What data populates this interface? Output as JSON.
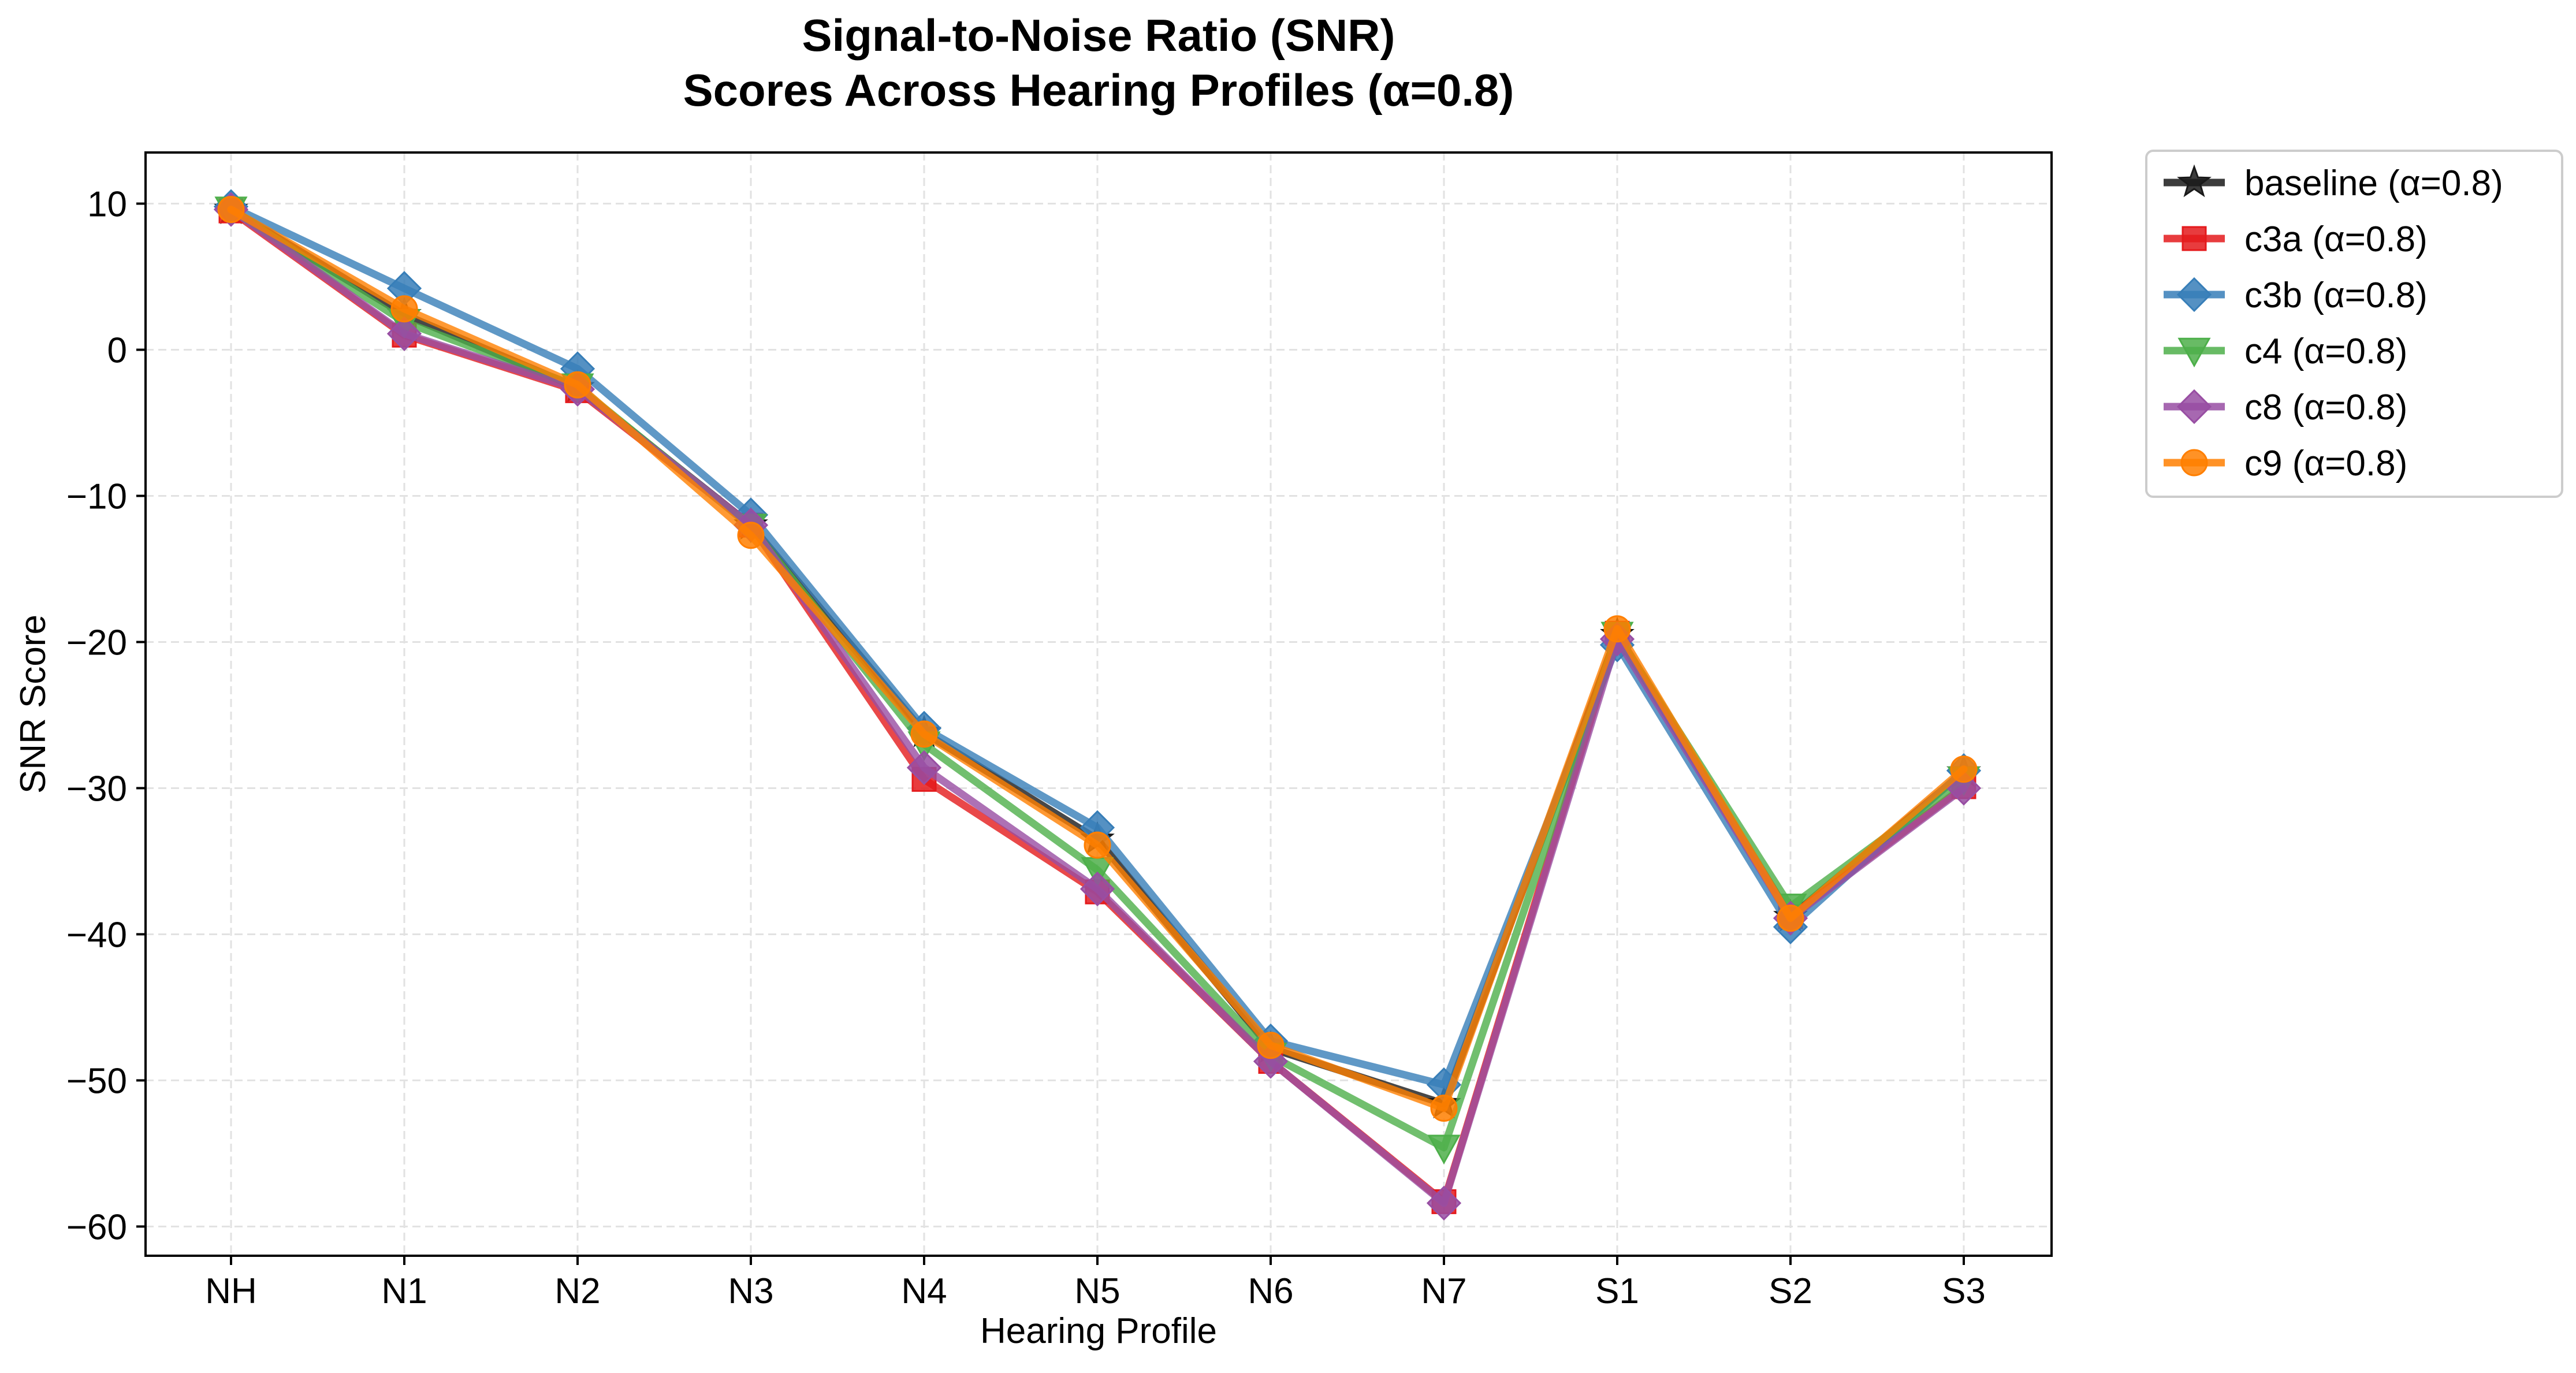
{
  "chart_data": {
    "type": "line",
    "title": "Signal-to-Noise Ratio (SNR)",
    "subtitle": "Scores Across Hearing Profiles (α=0.8)",
    "xlabel": "Hearing Profile",
    "ylabel": "SNR Score",
    "categories": [
      "NH",
      "N1",
      "N2",
      "N3",
      "N4",
      "N5",
      "N6",
      "N7",
      "S1",
      "S2",
      "S3"
    ],
    "ylim": [
      -62,
      13.5
    ],
    "yticks": [
      10,
      0,
      -10,
      -20,
      -30,
      -40,
      -50,
      -60
    ],
    "ytick_labels": [
      "10",
      "0",
      "−10",
      "−20",
      "−30",
      "−40",
      "−50",
      "−60"
    ],
    "grid": true,
    "legend_position": "outside-top-right",
    "series": [
      {
        "name": "baseline (α=0.8)",
        "color": "#1a1a1a",
        "marker": "star",
        "values": [
          9.6,
          2.4,
          -2.6,
          -12.0,
          -26.2,
          -33.5,
          -47.8,
          -51.6,
          -19.5,
          -38.8,
          -28.9
        ]
      },
      {
        "name": "c3a (α=0.8)",
        "color": "#e41a1c",
        "marker": "square",
        "values": [
          9.5,
          1.0,
          -2.8,
          -12.0,
          -29.4,
          -37.1,
          -48.7,
          -58.3,
          -19.4,
          -38.8,
          -29.9
        ]
      },
      {
        "name": "c3b (α=0.8)",
        "color": "#377eb8",
        "marker": "diamond",
        "values": [
          9.8,
          4.2,
          -1.3,
          -11.3,
          -25.9,
          -32.7,
          -47.3,
          -50.3,
          -20.2,
          -39.5,
          -28.8
        ]
      },
      {
        "name": "c4 (α=0.8)",
        "color": "#4daf4a",
        "marker": "triangle-down",
        "values": [
          9.6,
          1.9,
          -2.5,
          -12.1,
          -27.0,
          -35.6,
          -48.3,
          -54.6,
          -19.5,
          -38.1,
          -29.4
        ]
      },
      {
        "name": "c8 (α=0.8)",
        "color": "#984ea3",
        "marker": "diamond",
        "values": [
          9.6,
          1.1,
          -2.7,
          -12.0,
          -28.6,
          -36.9,
          -48.7,
          -58.4,
          -19.8,
          -38.9,
          -30.0
        ]
      },
      {
        "name": "c9 (α=0.8)",
        "color": "#ff7f00",
        "marker": "circle",
        "values": [
          9.6,
          2.8,
          -2.4,
          -12.7,
          -26.3,
          -33.9,
          -47.6,
          -51.9,
          -19.1,
          -38.9,
          -28.7
        ]
      }
    ]
  }
}
